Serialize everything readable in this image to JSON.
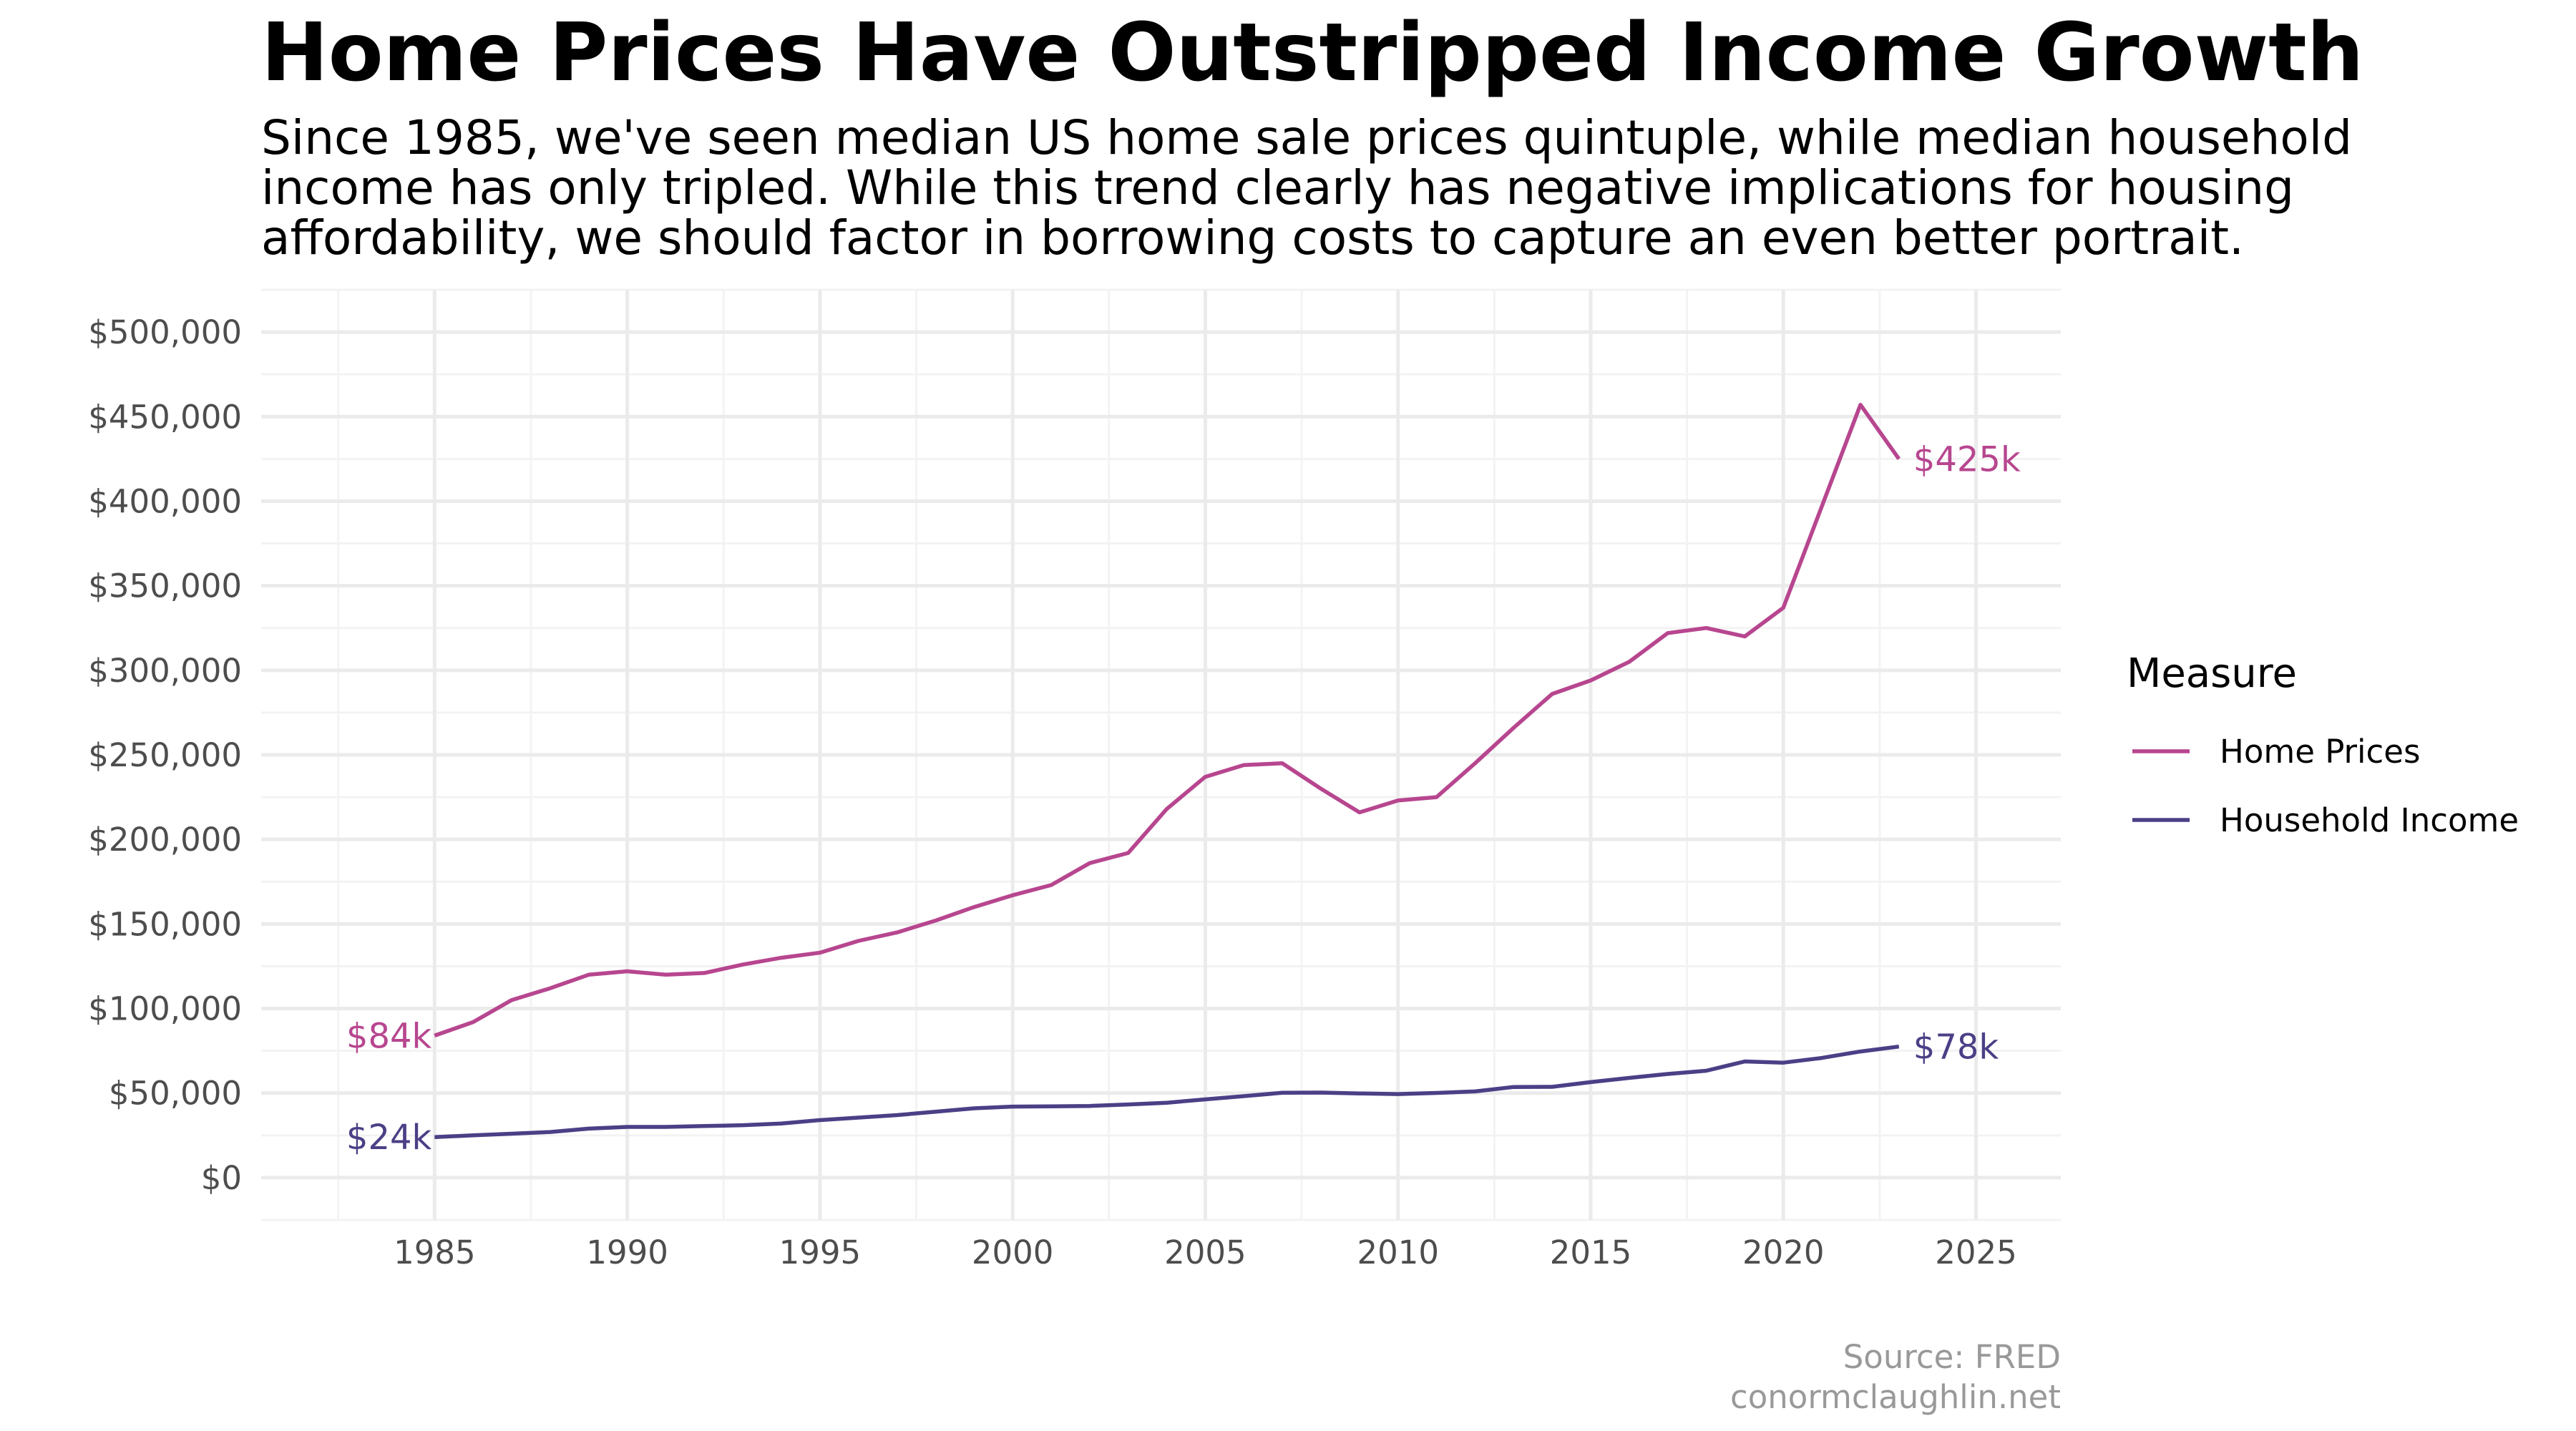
{
  "chart_data": {
    "type": "line",
    "title": "Home Prices Have Outstripped Income Growth",
    "subtitle_lines": [
      "Since 1985, we've seen median US home sale prices quintuple, while median household",
      "income has only tripled. While this trend clearly has negative implications for housing",
      "affordability, we should factor in borrowing costs to capture an even better portrait."
    ],
    "xlabel": "",
    "ylabel": "",
    "xlim": [
      1980.5,
      2027.2
    ],
    "ylim": [
      -25000,
      525000
    ],
    "x_ticks": [
      1985,
      1990,
      1995,
      2000,
      2005,
      2010,
      2015,
      2020,
      2025
    ],
    "y_ticks": [
      0,
      50000,
      100000,
      150000,
      200000,
      250000,
      300000,
      350000,
      400000,
      450000,
      500000
    ],
    "y_tick_labels": [
      "$0",
      "$50,000",
      "$100,000",
      "$150,000",
      "$200,000",
      "$250,000",
      "$300,000",
      "$350,000",
      "$400,000",
      "$450,000",
      "$500,000"
    ],
    "x": [
      1985,
      1986,
      1987,
      1988,
      1989,
      1990,
      1991,
      1992,
      1993,
      1994,
      1995,
      1996,
      1997,
      1998,
      1999,
      2000,
      2001,
      2002,
      2003,
      2004,
      2005,
      2006,
      2007,
      2008,
      2009,
      2010,
      2011,
      2012,
      2013,
      2014,
      2015,
      2016,
      2017,
      2018,
      2019,
      2020,
      2021,
      2022,
      2023
    ],
    "series": [
      {
        "name": "Home Prices",
        "color": "#b7468f",
        "values": [
          84000,
          92000,
          105000,
          112000,
          120000,
          122000,
          120000,
          121000,
          126000,
          130000,
          133000,
          140000,
          145000,
          152000,
          160000,
          167000,
          173000,
          186000,
          192000,
          218000,
          237000,
          244000,
          245000,
          230000,
          216000,
          223000,
          225000,
          245000,
          266000,
          286000,
          294000,
          305000,
          322000,
          325000,
          320000,
          337000,
          397000,
          457000,
          425000
        ],
        "start_label": "$84k",
        "end_label": "$425k"
      },
      {
        "name": "Household Income",
        "color": "#4c3f86",
        "values": [
          24000,
          25000,
          26000,
          27000,
          29000,
          30000,
          30000,
          30500,
          31000,
          32000,
          34000,
          35500,
          37000,
          39000,
          41000,
          42000,
          42200,
          42400,
          43300,
          44300,
          46300,
          48200,
          50200,
          50300,
          49800,
          49400,
          50100,
          51000,
          53600,
          53700,
          56500,
          59000,
          61300,
          63200,
          68700,
          68000,
          70800,
          74600,
          77500
        ],
        "start_label": "$24k",
        "end_label": "$78k"
      }
    ],
    "legend": {
      "title": "Measure",
      "position": "right",
      "entries": [
        "Home Prices",
        "Household Income"
      ]
    },
    "caption": [
      "Source: FRED",
      "conormclaughlin.net"
    ],
    "grid": true
  }
}
